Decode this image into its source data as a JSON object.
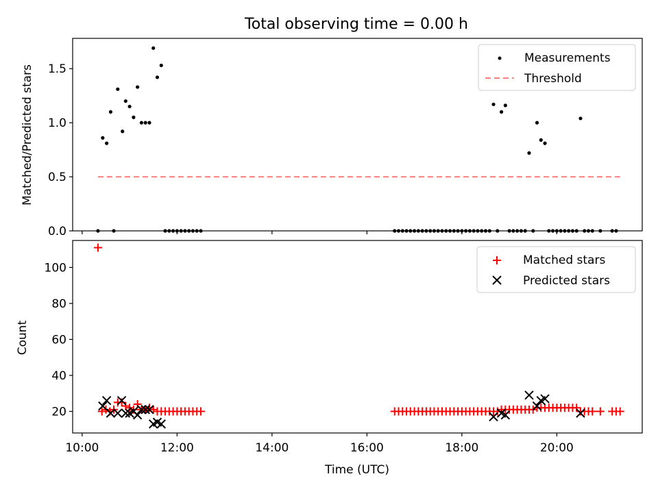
{
  "figure": {
    "title": "Total observing time = 0.00 h"
  },
  "chart_data": [
    {
      "type": "scatter",
      "ylabel": "Matched/Predicted stars",
      "ylim": [
        0.0,
        1.78
      ],
      "xlim": [
        "09:48",
        "21:48"
      ],
      "yticks": [
        "0.0",
        "0.5",
        "1.0",
        "1.5"
      ],
      "grid": false,
      "legend_position": "top-right",
      "series": [
        {
          "name": "Measurements",
          "marker": "dot",
          "color": "#000000",
          "points": [
            [
              "10:20",
              0.0
            ],
            [
              "10:26",
              0.86
            ],
            [
              "10:31",
              0.81
            ],
            [
              "10:36",
              1.1
            ],
            [
              "10:40",
              0.0
            ],
            [
              "10:45",
              1.31
            ],
            [
              "10:51",
              0.92
            ],
            [
              "10:55",
              1.2
            ],
            [
              "11:00",
              1.15
            ],
            [
              "11:05",
              1.05
            ],
            [
              "11:10",
              1.33
            ],
            [
              "11:15",
              1.0
            ],
            [
              "11:20",
              1.0
            ],
            [
              "11:25",
              1.0
            ],
            [
              "11:30",
              1.69
            ],
            [
              "11:35",
              1.42
            ],
            [
              "11:40",
              1.53
            ],
            [
              "11:45",
              0.0
            ],
            [
              "11:50",
              0.0
            ],
            [
              "11:55",
              0.0
            ],
            [
              "12:00",
              0.0
            ],
            [
              "12:05",
              0.0
            ],
            [
              "12:10",
              0.0
            ],
            [
              "12:15",
              0.0
            ],
            [
              "12:20",
              0.0
            ],
            [
              "12:25",
              0.0
            ],
            [
              "12:30",
              0.0
            ],
            [
              "16:35",
              0.0
            ],
            [
              "16:40",
              0.0
            ],
            [
              "16:45",
              0.0
            ],
            [
              "16:50",
              0.0
            ],
            [
              "16:55",
              0.0
            ],
            [
              "17:00",
              0.0
            ],
            [
              "17:05",
              0.0
            ],
            [
              "17:10",
              0.0
            ],
            [
              "17:15",
              0.0
            ],
            [
              "17:20",
              0.0
            ],
            [
              "17:25",
              0.0
            ],
            [
              "17:30",
              0.0
            ],
            [
              "17:35",
              0.0
            ],
            [
              "17:40",
              0.0
            ],
            [
              "17:45",
              0.0
            ],
            [
              "17:50",
              0.0
            ],
            [
              "17:55",
              0.0
            ],
            [
              "18:00",
              0.0
            ],
            [
              "18:05",
              0.0
            ],
            [
              "18:10",
              0.0
            ],
            [
              "18:15",
              0.0
            ],
            [
              "18:20",
              0.0
            ],
            [
              "18:25",
              0.0
            ],
            [
              "18:30",
              0.0
            ],
            [
              "18:35",
              0.0
            ],
            [
              "18:40",
              1.17
            ],
            [
              "18:45",
              0.0
            ],
            [
              "18:50",
              1.1
            ],
            [
              "18:55",
              1.16
            ],
            [
              "19:00",
              0.0
            ],
            [
              "19:05",
              0.0
            ],
            [
              "19:10",
              0.0
            ],
            [
              "19:15",
              0.0
            ],
            [
              "19:20",
              0.0
            ],
            [
              "19:25",
              0.72
            ],
            [
              "19:30",
              0.0
            ],
            [
              "19:35",
              1.0
            ],
            [
              "19:40",
              0.84
            ],
            [
              "19:45",
              0.81
            ],
            [
              "19:50",
              0.0
            ],
            [
              "19:55",
              0.0
            ],
            [
              "20:00",
              0.0
            ],
            [
              "20:05",
              0.0
            ],
            [
              "20:10",
              0.0
            ],
            [
              "20:15",
              0.0
            ],
            [
              "20:20",
              0.0
            ],
            [
              "20:25",
              0.0
            ],
            [
              "20:30",
              1.04
            ],
            [
              "20:35",
              0.0
            ],
            [
              "20:40",
              0.0
            ],
            [
              "20:45",
              0.0
            ],
            [
              "20:55",
              0.0
            ],
            [
              "21:10",
              0.0
            ],
            [
              "21:15",
              0.0
            ]
          ]
        },
        {
          "name": "Threshold",
          "marker": "dashed-line",
          "color": "#ff7f7f",
          "points": [
            [
              "10:20",
              0.5
            ],
            [
              "21:20",
              0.5
            ]
          ]
        }
      ]
    },
    {
      "type": "scatter",
      "xlabel": "Time (UTC)",
      "ylabel": "Count",
      "ylim": [
        8,
        115
      ],
      "xlim": [
        "09:48",
        "21:48"
      ],
      "xticks": [
        "10:00",
        "12:00",
        "14:00",
        "16:00",
        "18:00",
        "20:00"
      ],
      "yticks": [
        "20",
        "40",
        "60",
        "80",
        "100"
      ],
      "grid": false,
      "legend_position": "top-right",
      "series": [
        {
          "name": "Matched stars",
          "marker": "plus",
          "color": "#ff0000",
          "points": [
            [
              "10:20",
              111
            ],
            [
              "10:25",
              20
            ],
            [
              "10:30",
              21
            ],
            [
              "10:35",
              20
            ],
            [
              "10:40",
              21
            ],
            [
              "10:45",
              25
            ],
            [
              "10:50",
              25
            ],
            [
              "10:55",
              23
            ],
            [
              "11:00",
              22
            ],
            [
              "11:05",
              21
            ],
            [
              "11:10",
              24
            ],
            [
              "11:15",
              21
            ],
            [
              "11:20",
              21
            ],
            [
              "11:25",
              22
            ],
            [
              "11:30",
              21
            ],
            [
              "11:35",
              20
            ],
            [
              "11:40",
              20
            ],
            [
              "11:45",
              20
            ],
            [
              "11:50",
              20
            ],
            [
              "11:55",
              20
            ],
            [
              "12:00",
              20
            ],
            [
              "12:05",
              20
            ],
            [
              "12:10",
              20
            ],
            [
              "12:15",
              20
            ],
            [
              "12:20",
              20
            ],
            [
              "12:25",
              20
            ],
            [
              "12:30",
              20
            ],
            [
              "16:35",
              20
            ],
            [
              "16:40",
              20
            ],
            [
              "16:45",
              20
            ],
            [
              "16:50",
              20
            ],
            [
              "16:55",
              20
            ],
            [
              "17:00",
              20
            ],
            [
              "17:05",
              20
            ],
            [
              "17:10",
              20
            ],
            [
              "17:15",
              20
            ],
            [
              "17:20",
              20
            ],
            [
              "17:25",
              20
            ],
            [
              "17:30",
              20
            ],
            [
              "17:35",
              20
            ],
            [
              "17:40",
              20
            ],
            [
              "17:45",
              20
            ],
            [
              "17:50",
              20
            ],
            [
              "17:55",
              20
            ],
            [
              "18:00",
              20
            ],
            [
              "18:05",
              20
            ],
            [
              "18:10",
              20
            ],
            [
              "18:15",
              20
            ],
            [
              "18:20",
              20
            ],
            [
              "18:25",
              20
            ],
            [
              "18:30",
              20
            ],
            [
              "18:35",
              20
            ],
            [
              "18:40",
              20
            ],
            [
              "18:45",
              20
            ],
            [
              "18:50",
              21
            ],
            [
              "18:55",
              21
            ],
            [
              "19:00",
              21
            ],
            [
              "19:05",
              21
            ],
            [
              "19:10",
              21
            ],
            [
              "19:15",
              21
            ],
            [
              "19:20",
              21
            ],
            [
              "19:25",
              21
            ],
            [
              "19:30",
              21
            ],
            [
              "19:35",
              22
            ],
            [
              "19:40",
              22
            ],
            [
              "19:45",
              22
            ],
            [
              "19:50",
              22
            ],
            [
              "19:55",
              22
            ],
            [
              "20:00",
              22
            ],
            [
              "20:05",
              22
            ],
            [
              "20:10",
              22
            ],
            [
              "20:15",
              22
            ],
            [
              "20:20",
              22
            ],
            [
              "20:25",
              22
            ],
            [
              "20:30",
              20
            ],
            [
              "20:35",
              20
            ],
            [
              "20:40",
              20
            ],
            [
              "20:45",
              20
            ],
            [
              "20:55",
              20
            ],
            [
              "21:10",
              20
            ],
            [
              "21:15",
              20
            ],
            [
              "21:20",
              20
            ]
          ]
        },
        {
          "name": "Predicted stars",
          "marker": "x",
          "color": "#000000",
          "points": [
            [
              "10:26",
              23
            ],
            [
              "10:31",
              26
            ],
            [
              "10:36",
              19
            ],
            [
              "10:45",
              19
            ],
            [
              "10:50",
              26
            ],
            [
              "10:55",
              19
            ],
            [
              "11:00",
              19
            ],
            [
              "11:05",
              20
            ],
            [
              "11:10",
              18
            ],
            [
              "11:15",
              21
            ],
            [
              "11:20",
              21
            ],
            [
              "11:25",
              21
            ],
            [
              "11:30",
              13
            ],
            [
              "11:35",
              14
            ],
            [
              "11:40",
              13
            ],
            [
              "18:40",
              17
            ],
            [
              "18:50",
              19
            ],
            [
              "18:55",
              18
            ],
            [
              "19:25",
              29
            ],
            [
              "19:35",
              23
            ],
            [
              "19:40",
              26
            ],
            [
              "19:45",
              27
            ],
            [
              "20:30",
              19
            ]
          ]
        }
      ]
    }
  ]
}
